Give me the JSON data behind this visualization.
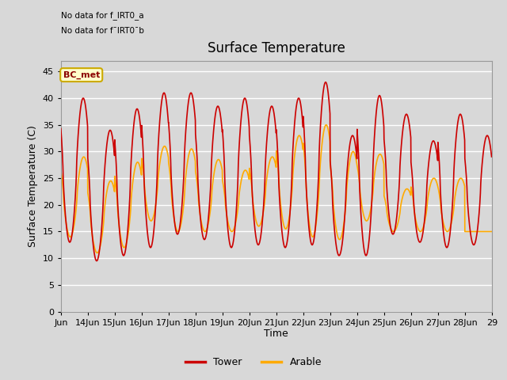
{
  "title": "Surface Temperature",
  "xlabel": "Time",
  "ylabel": "Surface Temperature (C)",
  "ylim": [
    0,
    47
  ],
  "yticks": [
    0,
    5,
    10,
    15,
    20,
    25,
    30,
    35,
    40,
    45
  ],
  "tower_color": "#cc0000",
  "arable_color": "#ffaa00",
  "fig_bg_color": "#d8d8d8",
  "plot_bg_color": "#d8d8d8",
  "grid_color": "#ffffff",
  "legend_box_facecolor": "#ffffcc",
  "legend_box_edgecolor": "#ccaa00",
  "legend_text": "BC_met",
  "no_data_text1": "No data for f_IRT0_a",
  "no_data_text2": "No data for f¯IRT0¯b",
  "tower_peaks": [
    40.0,
    34.0,
    38.0,
    41.0,
    41.0,
    38.5,
    40.0,
    38.5,
    40.0,
    43.0,
    33.0,
    40.5,
    37.0,
    32.0,
    37.0,
    33.0
  ],
  "tower_troughs": [
    13.0,
    9.5,
    10.5,
    12.0,
    14.5,
    13.5,
    12.0,
    12.5,
    12.0,
    12.5,
    10.5,
    10.5,
    14.5,
    13.0,
    12.0,
    12.5
  ],
  "arable_peaks": [
    29.0,
    24.5,
    28.0,
    31.0,
    30.5,
    28.5,
    26.5,
    29.0,
    33.0,
    35.0,
    30.0,
    29.5,
    23.0,
    25.0,
    25.0,
    15.0
  ],
  "arable_troughs": [
    14.0,
    11.0,
    12.0,
    17.0,
    15.0,
    15.0,
    15.0,
    16.0,
    15.5,
    14.0,
    13.5,
    17.0,
    15.0,
    15.0,
    15.0,
    15.0
  ],
  "title_fontsize": 12,
  "label_fontsize": 9,
  "tick_fontsize": 8,
  "linewidth": 1.2,
  "xtick_labels": [
    "Jun",
    "14Jun",
    "15Jun",
    "16Jun",
    "17Jun",
    "18Jun",
    "19Jun",
    "20Jun",
    "21Jun",
    "22Jun",
    "23Jun",
    "24Jun",
    "25Jun",
    "26Jun",
    "27Jun",
    "28Jun",
    "29"
  ],
  "xtick_positions": [
    0,
    1,
    2,
    3,
    4,
    5,
    6,
    7,
    8,
    9,
    10,
    11,
    12,
    13,
    14,
    15,
    16
  ]
}
